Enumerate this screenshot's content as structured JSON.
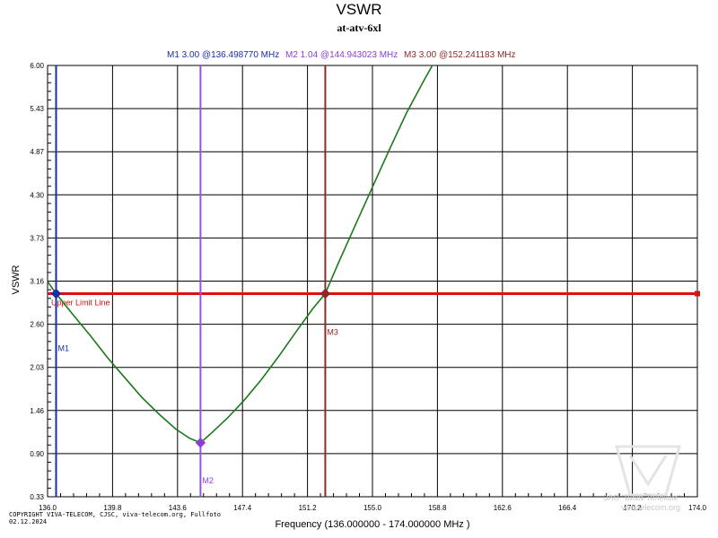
{
  "chart_data": {
    "type": "line",
    "title": "VSWR",
    "subtitle": "at-atv-6xl",
    "xlabel": "Frequency (136.000000 - 174.000000 MHz )",
    "ylabel": "VSWR",
    "xlim": [
      136.0,
      174.0
    ],
    "ylim": [
      0.33,
      6.0
    ],
    "x_ticks": [
      "136.0",
      "139.8",
      "143.6",
      "147.4",
      "151.2",
      "155.0",
      "158.8",
      "162.6",
      "166.4",
      "170.2",
      "174.0"
    ],
    "y_ticks": [
      "6.00",
      "5.43",
      "4.87",
      "4.30",
      "3.73",
      "3.16",
      "2.60",
      "2.03",
      "1.46",
      "0.90",
      "0.33"
    ],
    "grid": true,
    "series": [
      {
        "name": "",
        "color": "#1a7a1a",
        "x": [
          136.0,
          136.5,
          137.5,
          138.5,
          139.5,
          140.5,
          141.5,
          142.5,
          143.5,
          144.3,
          144.94,
          145.5,
          146.5,
          147.5,
          148.5,
          149.5,
          150.5,
          151.5,
          152.24,
          153.0,
          154.0,
          155.0,
          156.0,
          157.0,
          158.0,
          158.5
        ],
        "y": [
          3.16,
          3.0,
          2.72,
          2.45,
          2.16,
          1.9,
          1.64,
          1.42,
          1.22,
          1.1,
          1.04,
          1.15,
          1.36,
          1.6,
          1.87,
          2.17,
          2.49,
          2.8,
          3.0,
          3.4,
          3.9,
          4.4,
          4.9,
          5.38,
          5.8,
          6.0
        ]
      }
    ],
    "limit_line": {
      "label": "Upper Limit Line",
      "value": 3.0,
      "color": "#dd1111"
    },
    "markers": [
      {
        "id": "M1",
        "x": 136.49877,
        "y": 3.0,
        "readout": "M1   3.00 @136.498770 MHz",
        "color": "#1a2fa0",
        "line_color": "#1a2fa0"
      },
      {
        "id": "M2",
        "x": 144.943023,
        "y": 1.04,
        "readout": "M2   1.04 @144.943023 MHz",
        "color": "#8a3fd1",
        "line_color": "#9b4fe0"
      },
      {
        "id": "M3",
        "x": 152.241183,
        "y": 3.0,
        "readout": "M3   3.00 @152.241183 MHz",
        "color": "#8b2a2a",
        "line_color": "#8b2a2a"
      }
    ]
  },
  "footer": {
    "copyright_line1": "COPYRIGHT VIVA-TELECOM, CJSC, viva-telecom.org, Fullfoto",
    "copyright_line2": "02.12.2024",
    "watermark_line1": "ЗАО \"Вива-Телеком\"",
    "watermark_line2": "viva-telecom.org"
  }
}
